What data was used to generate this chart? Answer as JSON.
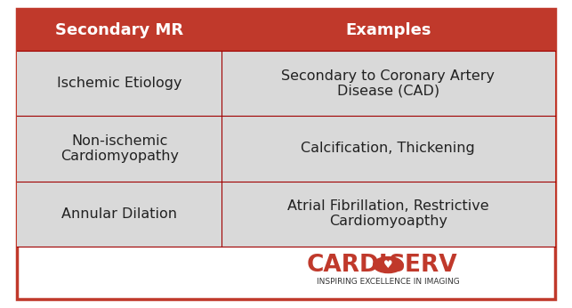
{
  "header": [
    "Secondary MR",
    "Examples"
  ],
  "rows": [
    [
      "Ischemic Etiology",
      "Secondary to Coronary Artery\nDisease (CAD)"
    ],
    [
      "Non-ischemic\nCardiomyopathy",
      "Calcification, Thickening"
    ],
    [
      "Annular Dilation",
      "Atrial Fibrillation, Restrictive\nCardiomyoapthy"
    ]
  ],
  "header_bg": "#c0392b",
  "header_text_color": "#ffffff",
  "row_bg": "#d9d9d9",
  "row_text_color": "#222222",
  "border_color": "#a00000",
  "outer_border_color": "#c0392b",
  "fig_bg": "#ffffff",
  "col_split": 0.38,
  "logo_cardi": "CARDI",
  "logo_serv": "SERV",
  "logo_subtitle": "INSPIRING EXCELLENCE IN IMAGING",
  "logo_red": "#c0392b",
  "logo_dark": "#333333",
  "header_fontsize": 13,
  "row_fontsize": 11.5,
  "logo_fontsize": 19,
  "logo_sub_fontsize": 6.5
}
